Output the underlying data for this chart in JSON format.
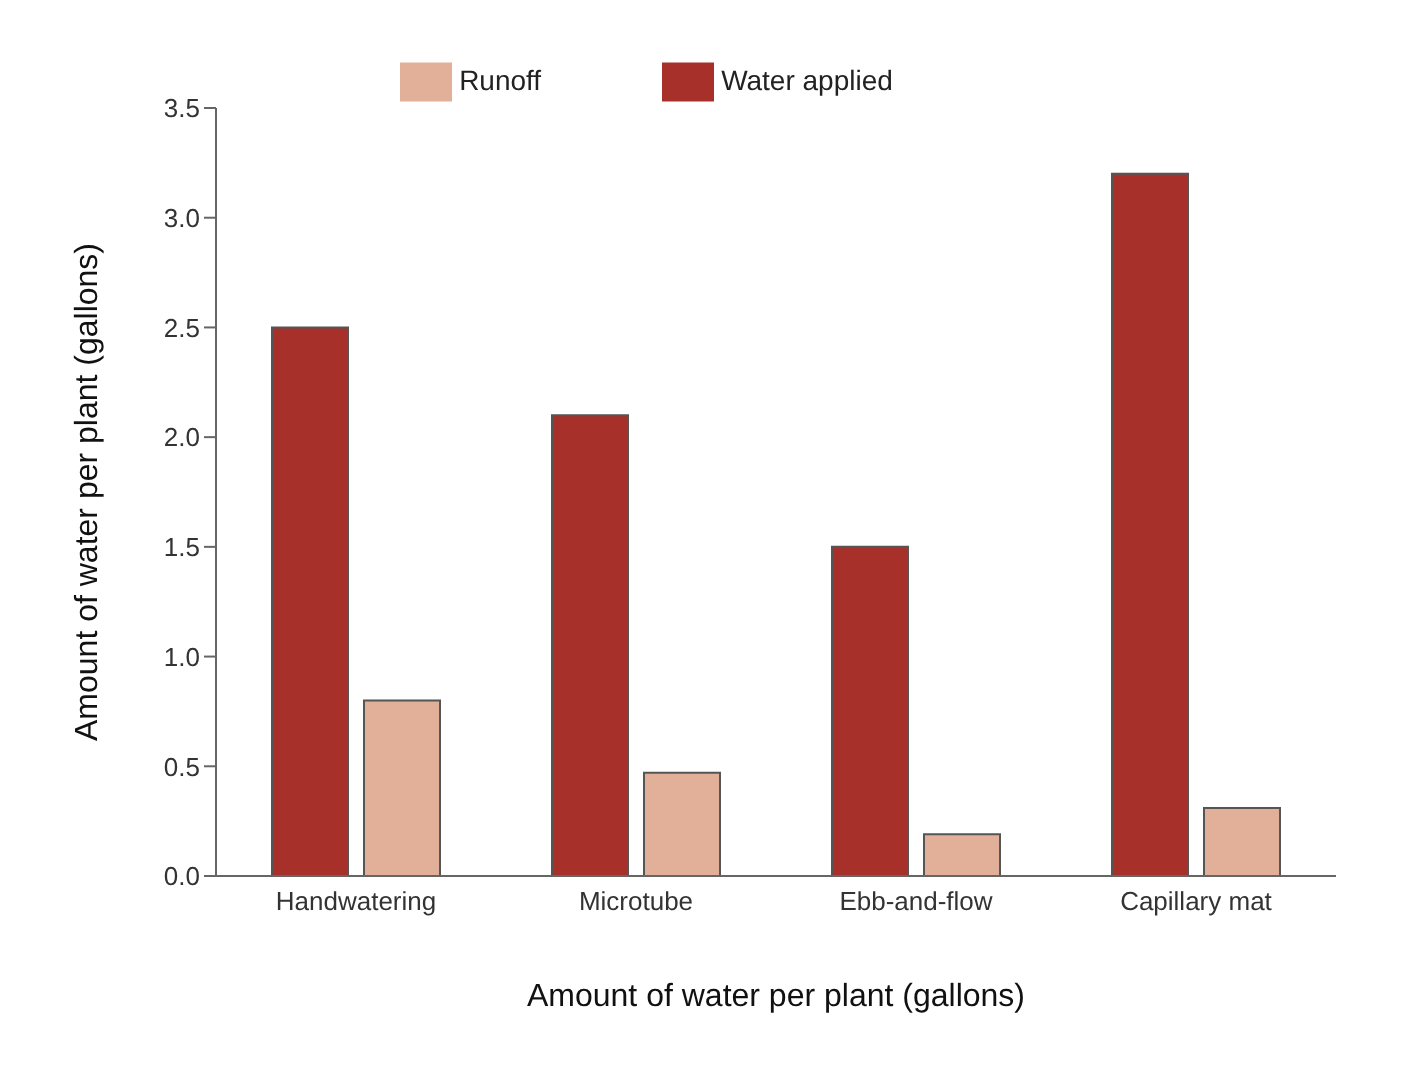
{
  "chart_data": {
    "type": "bar",
    "xlabel": "Amount of water per plant (gallons)",
    "ylabel": "Amount of water per plant (gallons)",
    "categories": [
      "Handwatering",
      "Microtube",
      "Ebb-and-flow",
      "Capillary mat"
    ],
    "series": [
      {
        "name": "Water applied",
        "color": "#a8302a",
        "values": [
          2.5,
          2.1,
          1.5,
          3.2
        ]
      },
      {
        "name": "Runoff",
        "color": "#e2b098",
        "values": [
          0.8,
          0.47,
          0.19,
          0.31
        ]
      }
    ],
    "ylim": [
      0,
      3.5
    ],
    "yticks": [
      {
        "value": 0,
        "label": "0.0"
      },
      {
        "value": 0.5,
        "label": "0.5"
      },
      {
        "value": 1,
        "label": "1.0"
      },
      {
        "value": 1.5,
        "label": "1.5"
      },
      {
        "value": 2,
        "label": "2.0"
      },
      {
        "value": 2.5,
        "label": "2.5"
      },
      {
        "value": 3,
        "label": "3.0"
      },
      {
        "value": 3.5,
        "label": "3.5"
      }
    ],
    "grid": false,
    "legend": "top"
  }
}
